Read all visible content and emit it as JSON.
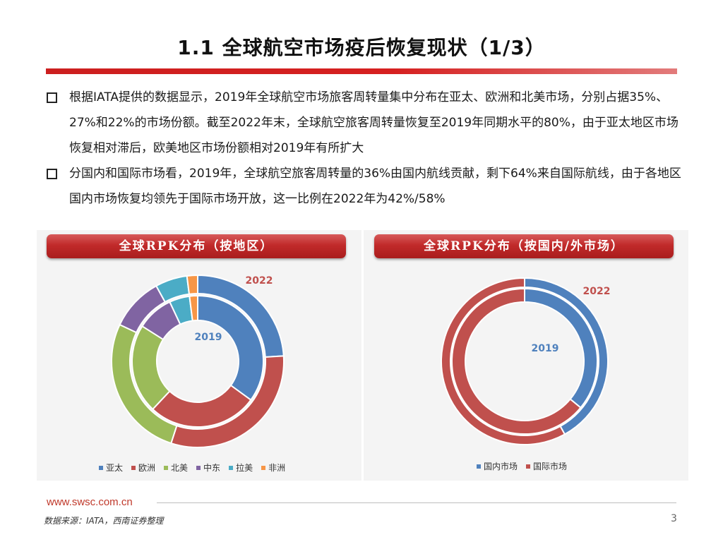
{
  "page": {
    "title": "1.1 全球航空市场疫后恢复现状（1/3）",
    "bullets": [
      "根据IATA提供的数据显示，2019年全球航空市场旅客周转量集中分布在亚太、欧洲和北美市场，分别占据35%、27%和22%的市场份额。截至2022年末，全球航空旅客周转量恢复至2019年同期水平的80%，由于亚太地区市场恢复相对滞后，欧美地区市场份额相对2019年有所扩大",
      "分国内和国际市场看，2019年，全球航空旅客周转量的36%由国内航线贡献，剩下64%来自国际航线，由于各地区国内市场恢复均领先于国际市场开放，这一比例在2022年为42%/58%"
    ],
    "website": "www.swsc.com.cn",
    "source": "数据来源：IATA，西南证券整理",
    "page_number": "3"
  },
  "chart_data": [
    {
      "type": "pie",
      "title": "全球RPK分布（按地区）",
      "categories": [
        "亚太",
        "欧洲",
        "北美",
        "中东",
        "拉美",
        "非洲"
      ],
      "colors": [
        "#4f81bd",
        "#c0504d",
        "#9bbb59",
        "#8064a2",
        "#4bacc6",
        "#f79646"
      ],
      "series": [
        {
          "name": "2019",
          "values": [
            35,
            27,
            22,
            9,
            5,
            2
          ]
        },
        {
          "name": "2022",
          "values": [
            24,
            31,
            27,
            10,
            6,
            2
          ]
        }
      ],
      "legend": "bottom"
    },
    {
      "type": "pie",
      "title": "全球RPK分布（按国内/外市场）",
      "categories": [
        "国内市场",
        "国际市场"
      ],
      "colors": [
        "#4f81bd",
        "#c0504d"
      ],
      "series": [
        {
          "name": "2019",
          "values": [
            36,
            64
          ]
        },
        {
          "name": "2022",
          "values": [
            42,
            58
          ]
        }
      ],
      "legend": "bottom"
    }
  ]
}
